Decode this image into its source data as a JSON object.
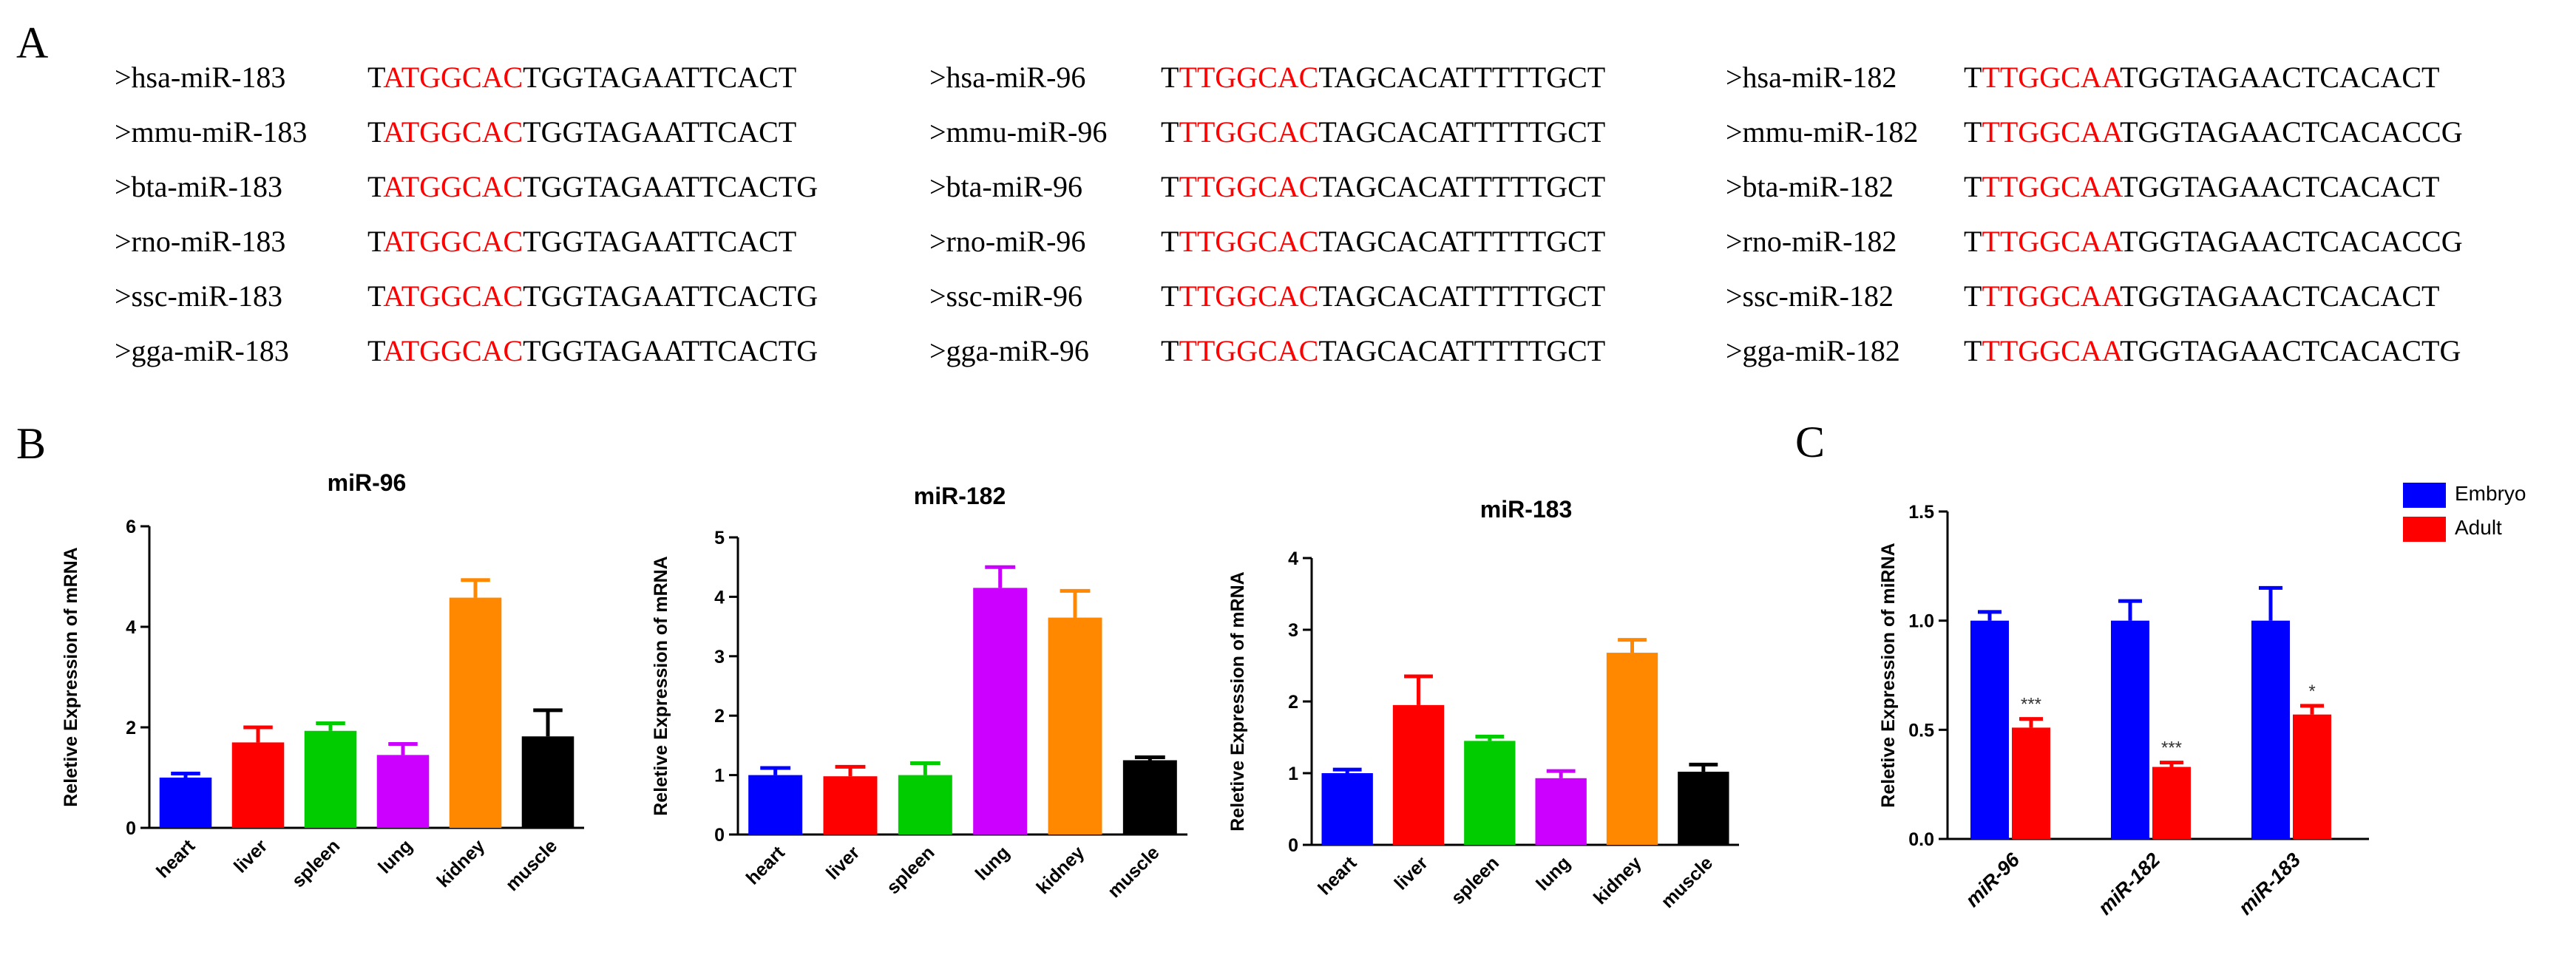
{
  "panel_labels": {
    "a": "A",
    "b": "B",
    "c": "C"
  },
  "alignment": {
    "groups": [
      {
        "rows": [
          {
            "name": ">hsa-miR-183",
            "prefix": "T",
            "seed": "ATGGCAC",
            "rest": "TGGTAGAATTCACT"
          },
          {
            "name": ">mmu-miR-183",
            "prefix": "T",
            "seed": "ATGGCAC",
            "rest": "TGGTAGAATTCACT"
          },
          {
            "name": ">bta-miR-183",
            "prefix": "T",
            "seed": "ATGGCAC",
            "rest": "TGGTAGAATTCACTG"
          },
          {
            "name": ">rno-miR-183",
            "prefix": "T",
            "seed": "ATGGCAC",
            "rest": "TGGTAGAATTCACT"
          },
          {
            "name": ">ssc-miR-183",
            "prefix": "T",
            "seed": "ATGGCAC",
            "rest": "TGGTAGAATTCACTG"
          },
          {
            "name": ">gga-miR-183",
            "prefix": "T",
            "seed": "ATGGCAC",
            "rest": "TGGTAGAATTCACTG"
          }
        ]
      },
      {
        "rows": [
          {
            "name": ">hsa-miR-96",
            "prefix": "T",
            "seed": "TTGGCAC",
            "rest": "TAGCACATTTTTGCT"
          },
          {
            "name": ">mmu-miR-96",
            "prefix": "T",
            "seed": "TTGGCAC",
            "rest": "TAGCACATTTTTGCT"
          },
          {
            "name": ">bta-miR-96",
            "prefix": "T",
            "seed": "TTGGCAC",
            "rest": "TAGCACATTTTTGCT"
          },
          {
            "name": ">rno-miR-96",
            "prefix": "T",
            "seed": "TTGGCAC",
            "rest": "TAGCACATTTTTGCT"
          },
          {
            "name": ">ssc-miR-96",
            "prefix": "T",
            "seed": "TTGGCAC",
            "rest": "TAGCACATTTTTGCT"
          },
          {
            "name": ">gga-miR-96",
            "prefix": "T",
            "seed": "TTGGCAC",
            "rest": "TAGCACATTTTTGCT"
          }
        ]
      },
      {
        "rows": [
          {
            "name": ">hsa-miR-182",
            "prefix": "T",
            "seed": "TTGGCAA",
            "rest": "TGGTAGAACTCACACT"
          },
          {
            "name": ">mmu-miR-182",
            "prefix": "T",
            "seed": "TTGGCAA",
            "rest": "TGGTAGAACTCACACCG"
          },
          {
            "name": ">bta-miR-182",
            "prefix": "T",
            "seed": "TTGGCAA",
            "rest": "TGGTAGAACTCACACT"
          },
          {
            "name": ">rno-miR-182",
            "prefix": "T",
            "seed": "TTGGCAA",
            "rest": "TGGTAGAACTCACACCG"
          },
          {
            "name": ">ssc-miR-182",
            "prefix": "T",
            "seed": "TTGGCAA",
            "rest": "TGGTAGAACTCACACT"
          },
          {
            "name": ">gga-miR-182",
            "prefix": "T",
            "seed": "TTGGCAA",
            "rest": "TGGTAGAACTCACACTG"
          }
        ]
      }
    ]
  },
  "colors": {
    "seed": "#ff0000",
    "text": "#000000",
    "blue": "#0000ff",
    "red": "#ff0000",
    "green": "#00cc00",
    "magenta": "#cc00ff",
    "orange": "#ff8800",
    "black": "#000000"
  },
  "chart_data": [
    {
      "type": "bar",
      "title": "miR-96",
      "ylabel": "Reletive  Expression of mRNA",
      "xlabel": "",
      "categories": [
        "heart",
        "liver",
        "spleen",
        "lung",
        "kidney",
        "muscle"
      ],
      "values": [
        1.0,
        1.7,
        1.93,
        1.45,
        4.58,
        1.82
      ],
      "errors": [
        0.08,
        0.3,
        0.15,
        0.22,
        0.35,
        0.52
      ],
      "bar_colors": [
        "blue",
        "red",
        "green",
        "magenta",
        "orange",
        "black"
      ],
      "ylim": [
        0,
        6
      ],
      "yticks": [
        0,
        2,
        4,
        6
      ]
    },
    {
      "type": "bar",
      "title": "miR-182",
      "ylabel": "Reletive  Expression of mRNA",
      "xlabel": "",
      "categories": [
        "heart",
        "liver",
        "spleen",
        "lung",
        "kidney",
        "muscle"
      ],
      "values": [
        1.0,
        0.98,
        1.0,
        4.15,
        3.65,
        1.25
      ],
      "errors": [
        0.12,
        0.16,
        0.2,
        0.35,
        0.45,
        0.05
      ],
      "bar_colors": [
        "blue",
        "red",
        "green",
        "magenta",
        "orange",
        "black"
      ],
      "ylim": [
        0,
        5
      ],
      "yticks": [
        0,
        1,
        2,
        3,
        4,
        5
      ]
    },
    {
      "type": "bar",
      "title": "miR-183",
      "ylabel": "Reletive  Expression of mRNA",
      "xlabel": "",
      "categories": [
        "heart",
        "liver",
        "spleen",
        "lung",
        "kidney",
        "muscle"
      ],
      "values": [
        1.0,
        1.95,
        1.45,
        0.93,
        2.68,
        1.02
      ],
      "errors": [
        0.05,
        0.4,
        0.06,
        0.1,
        0.18,
        0.1
      ],
      "bar_colors": [
        "blue",
        "red",
        "green",
        "magenta",
        "orange",
        "black"
      ],
      "ylim": [
        0,
        4
      ],
      "yticks": [
        0,
        1,
        2,
        3,
        4
      ]
    },
    {
      "type": "bar",
      "title": "",
      "ylabel": "Reletive  Expression of miRNA",
      "xlabel": "",
      "categories": [
        "miR-96",
        "miR-182",
        "miR-183"
      ],
      "series": [
        {
          "name": "Embryo",
          "color": "blue",
          "values": [
            1.0,
            1.0,
            1.0
          ],
          "errors": [
            0.04,
            0.09,
            0.15
          ]
        },
        {
          "name": "Adult",
          "color": "red",
          "values": [
            0.51,
            0.33,
            0.57
          ],
          "errors": [
            0.04,
            0.02,
            0.04
          ]
        }
      ],
      "significance": [
        "***",
        "***",
        "*"
      ],
      "ylim": [
        0,
        1.5
      ],
      "yticks": [
        0.0,
        0.5,
        1.0,
        1.5
      ],
      "legend": "top-right"
    }
  ]
}
